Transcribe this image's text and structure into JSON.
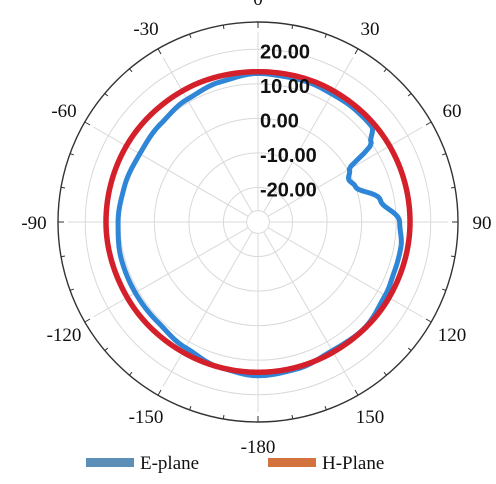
{
  "chart_data": {
    "type": "polar-line",
    "angle_ticks": [
      {
        "angle": 0,
        "label": "0"
      },
      {
        "angle": 30,
        "label": "30"
      },
      {
        "angle": 60,
        "label": "60"
      },
      {
        "angle": 90,
        "label": "90"
      },
      {
        "angle": 120,
        "label": "120"
      },
      {
        "angle": 150,
        "label": "150"
      },
      {
        "angle": 180,
        "label": "-180"
      },
      {
        "angle": -150,
        "label": "-150"
      },
      {
        "angle": -120,
        "label": "-120"
      },
      {
        "angle": -90,
        "label": "-90"
      },
      {
        "angle": -60,
        "label": "-60"
      },
      {
        "angle": -30,
        "label": "-30"
      }
    ],
    "radial_ticks": [
      {
        "value": 20,
        "label": "20.00"
      },
      {
        "value": 10,
        "label": "10.00"
      },
      {
        "value": 0,
        "label": "0.00"
      },
      {
        "value": -10,
        "label": "-10.00"
      },
      {
        "value": -20,
        "label": "-20.00"
      }
    ],
    "r_range": [
      -30,
      25
    ],
    "grid": true,
    "legend_position": "bottom",
    "series": [
      {
        "name": "E-plane",
        "color": "#2f86d6",
        "legend_color": "#5b8fb8",
        "angles": [
          -180,
          -165,
          -150,
          -135,
          -120,
          -105,
          -90,
          -75,
          -60,
          -45,
          -30,
          -15,
          0,
          10,
          20,
          30,
          40,
          50,
          55,
          60,
          65,
          70,
          80,
          90,
          100,
          110,
          120,
          135,
          150,
          165,
          180
        ],
        "values": [
          14.5,
          13.5,
          12,
          11,
          11,
          11,
          10.5,
          10,
          9.5,
          10,
          11,
          12,
          13,
          12.8,
          13,
          12.8,
          13,
          13,
          10,
          0.5,
          -1,
          0,
          6,
          11,
          12,
          12,
          12.5,
          13.5,
          13,
          14,
          14.5
        ]
      },
      {
        "name": "H-Plane",
        "color": "#d4202b",
        "legend_color": "#d2733d",
        "angles": [
          -180,
          -150,
          -120,
          -90,
          -60,
          -30,
          0,
          30,
          60,
          90,
          120,
          150,
          180
        ],
        "values": [
          13.5,
          13.5,
          13.7,
          14,
          14,
          13.8,
          13.5,
          13.8,
          14,
          14,
          13.8,
          13.5,
          13.5
        ]
      }
    ]
  }
}
